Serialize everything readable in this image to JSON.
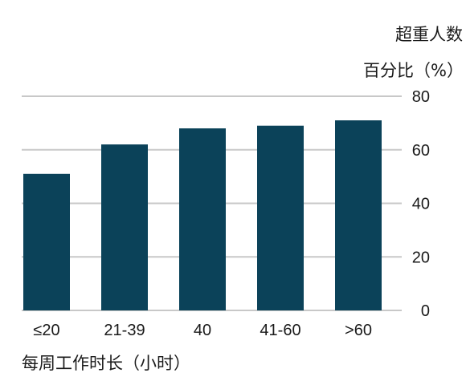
{
  "chart_data": {
    "type": "bar",
    "categories": [
      "≤20",
      "21-39",
      "40",
      "41-60",
      ">60"
    ],
    "values": [
      51,
      62,
      68,
      69,
      71
    ],
    "ylim": [
      0,
      80
    ],
    "yticks": [
      0,
      20,
      40,
      60,
      80
    ],
    "ylabel_line1": "超重人数",
    "ylabel_line2": "百分比（%）",
    "xlabel": "每周工作时长（小时）",
    "grid": true,
    "y_axis_side": "right",
    "colors": {
      "bar": "#0b4259",
      "grid": "#c8c8c8",
      "text": "#1a1a1a"
    }
  }
}
